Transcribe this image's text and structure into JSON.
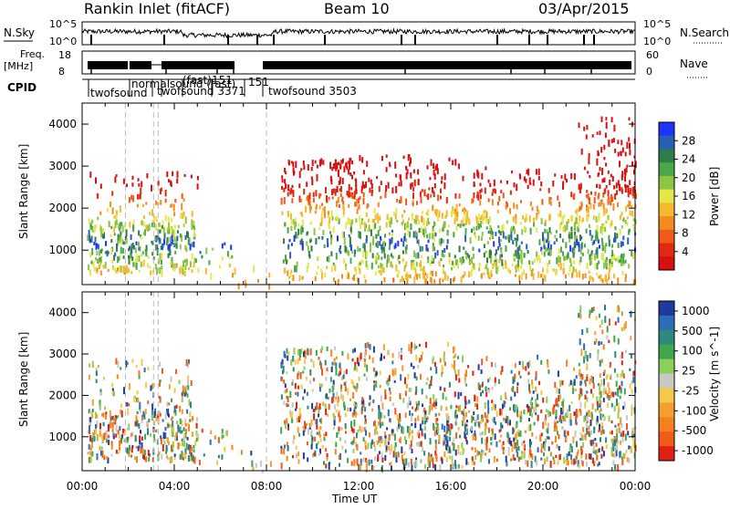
{
  "header": {
    "station": "Rankin Inlet (fitACF)",
    "beam": "Beam 10",
    "date": "03/Apr/2015"
  },
  "noise_panel": {
    "left_label": "N.Sky",
    "right_label": "N.Search",
    "left_ticks": [
      "10^5",
      "10^0"
    ],
    "right_ticks": [
      "10^5",
      "10^0"
    ]
  },
  "freq_panel": {
    "left_label_1": "Freq.",
    "left_label_2": "[MHz]",
    "right_label": "Nave",
    "left_ticks": [
      "18",
      "8"
    ],
    "right_ticks": [
      "60",
      "0"
    ]
  },
  "cpid_panel": {
    "label": "CPID",
    "entries": [
      {
        "text": "twofsound",
        "t": 0.6
      },
      {
        "text": "normalsound (fast)",
        "t": 2.4
      },
      {
        "text": "(fast)",
        "t": 3.7
      },
      {
        "text": "151",
        "t": 4.5
      },
      {
        "text": "twofsound 3371",
        "t": 3.4
      },
      {
        "text": "151",
        "t": 7.5
      },
      {
        "text": "twofsound 3503",
        "t": 8.6
      }
    ]
  },
  "axes": {
    "ylabel": "Slant Range [km]",
    "xlabel": "Time UT",
    "xticks": [
      "00:00",
      "04:00",
      "08:00",
      "12:00",
      "16:00",
      "20:00",
      "00:00"
    ],
    "yticks": [
      "1000",
      "2000",
      "3000",
      "4000"
    ]
  },
  "power_colorbar": {
    "label": "Power [dB]",
    "ticks": [
      "4",
      "8",
      "12",
      "16",
      "20",
      "24",
      "28"
    ],
    "colors": [
      "#1f33ff",
      "#2a5fb8",
      "#2e7d4a",
      "#4aa84a",
      "#8cc63f",
      "#e6e64a",
      "#f5b82e",
      "#f58a1f",
      "#f05a1a",
      "#e02a12",
      "#d81010"
    ]
  },
  "velocity_colorbar": {
    "label": "Velocity [m s^-1]",
    "ticks": [
      "1000",
      "500",
      "100",
      "25",
      "-25",
      "-100",
      "-500",
      "-1000"
    ],
    "colors": [
      "#1f3a9e",
      "#2d6db5",
      "#2e8a7a",
      "#3ea84a",
      "#8cd05a",
      "#c8c8c8",
      "#f5c84a",
      "#f5a02e",
      "#f5821f",
      "#f05a1a",
      "#e02010"
    ]
  },
  "chart_data": {
    "type": "heatmap",
    "x_range_hours": [
      0,
      24
    ],
    "y_range_km": [
      180,
      4500
    ],
    "panels": [
      "power",
      "velocity"
    ]
  }
}
